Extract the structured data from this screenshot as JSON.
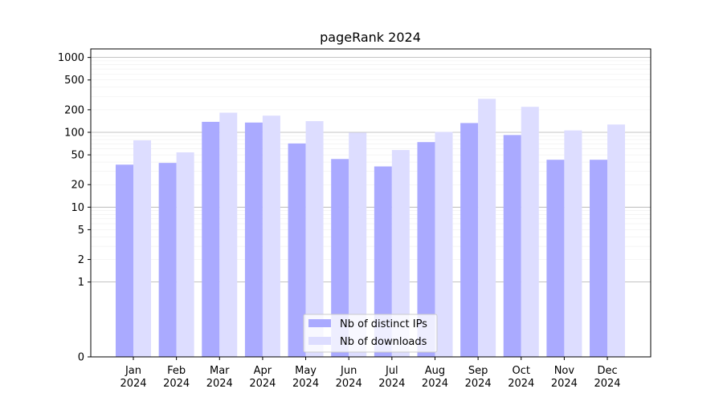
{
  "chart_data": {
    "type": "bar",
    "title": "pageRank 2024",
    "xlabel": "",
    "ylabel": "",
    "yscale": "symlog",
    "ylim": [
      0,
      1300
    ],
    "yticks": [
      0,
      1,
      2,
      5,
      10,
      20,
      50,
      100,
      200,
      500,
      1000
    ],
    "ytick_labels": [
      "0",
      "1",
      "2",
      "5",
      "10",
      "20",
      "50",
      "100",
      "200",
      "500",
      "1000"
    ],
    "grid": true,
    "categories": [
      [
        "Jan",
        "2024"
      ],
      [
        "Feb",
        "2024"
      ],
      [
        "Mar",
        "2024"
      ],
      [
        "Apr",
        "2024"
      ],
      [
        "May",
        "2024"
      ],
      [
        "Jun",
        "2024"
      ],
      [
        "Jul",
        "2024"
      ],
      [
        "Aug",
        "2024"
      ],
      [
        "Sep",
        "2024"
      ],
      [
        "Oct",
        "2024"
      ],
      [
        "Nov",
        "2024"
      ],
      [
        "Dec",
        "2024"
      ]
    ],
    "series": [
      {
        "name": "Nb of distinct IPs",
        "color": "#aaaaff",
        "values": [
          37,
          39,
          138,
          135,
          71,
          44,
          35,
          74,
          133,
          92,
          43,
          43
        ]
      },
      {
        "name": "Nb of downloads",
        "color": "#ddddff",
        "values": [
          78,
          54,
          183,
          167,
          141,
          99,
          58,
          101,
          280,
          219,
          106,
          127
        ]
      }
    ],
    "legend_position": "bottom-center"
  }
}
